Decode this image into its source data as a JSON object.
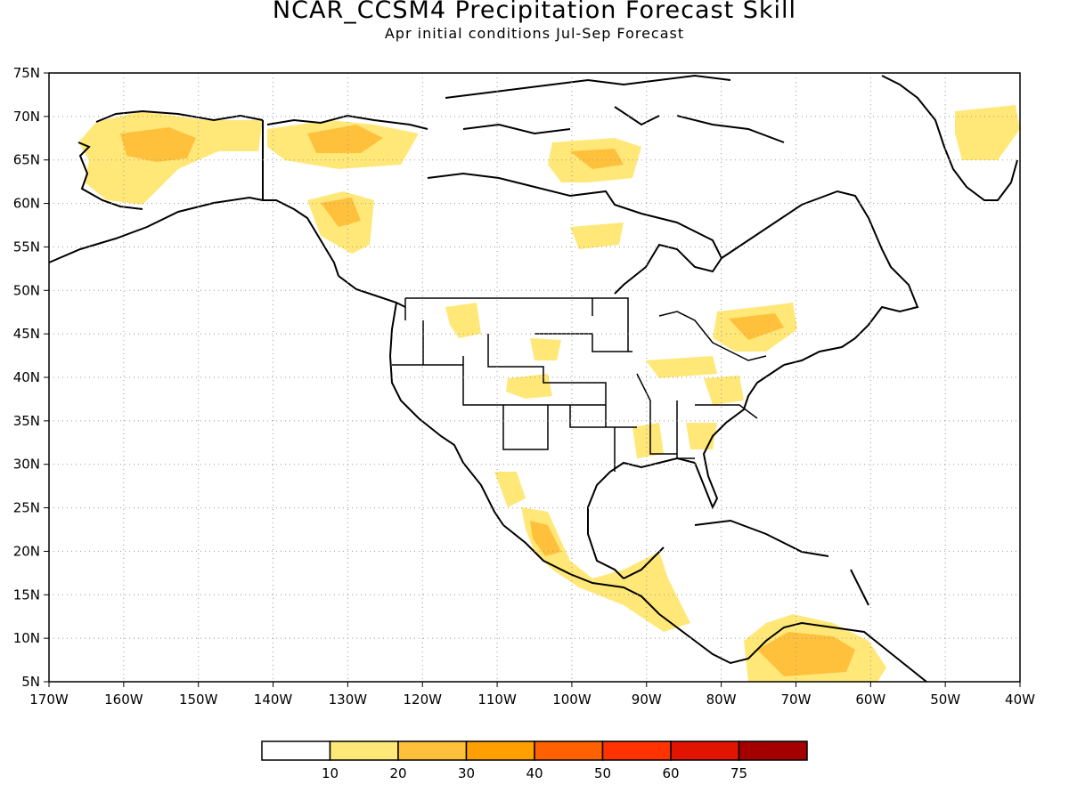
{
  "title": "NCAR_CCSM4 Precipitation Forecast Skill",
  "subtitle": "Apr initial conditions  Jul-Sep Forecast",
  "lat_labels": [
    "75N",
    "70N",
    "65N",
    "60N",
    "55N",
    "50N",
    "45N",
    "40N",
    "35N",
    "30N",
    "25N",
    "20N",
    "15N",
    "10N",
    "5N"
  ],
  "lon_labels": [
    "170W",
    "160W",
    "150W",
    "140W",
    "130W",
    "120W",
    "110W",
    "100W",
    "90W",
    "80W",
    "70W",
    "60W",
    "50W",
    "40W"
  ],
  "colorbar": {
    "labels": [
      "10",
      "20",
      "30",
      "40",
      "50",
      "60",
      "75"
    ],
    "colors": [
      "#ffffff",
      "#ffe878",
      "#ffc03c",
      "#ffa000",
      "#ff6000",
      "#ff3200",
      "#e11400",
      "#a50000"
    ]
  },
  "colors": {
    "land_outline": "#000000",
    "grid": "#999999"
  }
}
